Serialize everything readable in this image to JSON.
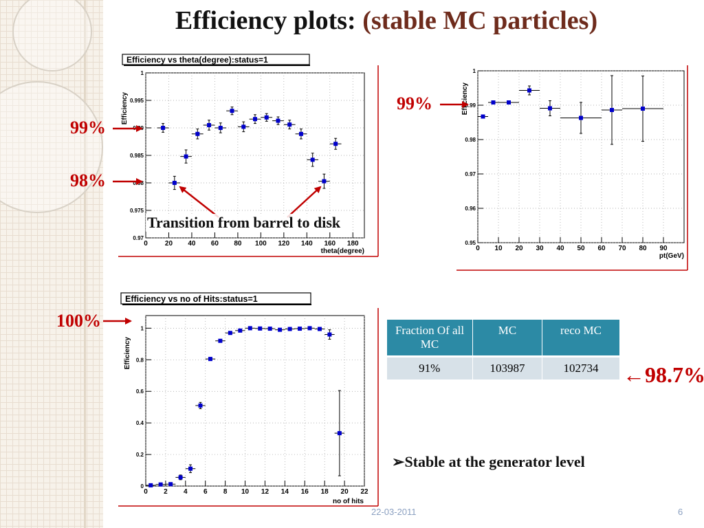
{
  "slide": {
    "title_main": "Efficiency plots:",
    "title_accent": "(stable MC particles)",
    "footer_date": "22-03-2011",
    "page_number": "6",
    "bullet_text": "Stable at the generator level",
    "transition_label": "Transition from barrel to disk"
  },
  "annotations": {
    "theta_99": "99%",
    "theta_98": "98%",
    "pt_99": "99%",
    "hits_100": "100%",
    "table_overall": "←98.7%"
  },
  "table": {
    "headers": [
      "Fraction Of all  MC",
      "MC",
      "reco MC"
    ],
    "row": [
      "91%",
      "103987",
      "102734"
    ]
  },
  "colors": {
    "marker": "#0000cc",
    "annotation_red": "#c00000",
    "frame_red": "#c00000",
    "title_accent": "#6e2b1c",
    "table_header": "#2c8aa5",
    "table_row": "#d7e1e8"
  },
  "chart_data": [
    {
      "type": "scatter",
      "title": "Efficiency vs theta(degree):status=1",
      "xlabel": "theta(degree)",
      "ylabel": "Efficiency",
      "xlim": [
        0,
        190
      ],
      "ylim": [
        0.97,
        1.0
      ],
      "xticks": [
        0,
        20,
        40,
        60,
        80,
        100,
        120,
        140,
        160,
        180
      ],
      "yticks": [
        0.97,
        0.975,
        0.98,
        0.985,
        0.99,
        0.995,
        1.0
      ],
      "ytick_labels": [
        "0.97",
        "0.975",
        "0.98",
        "0.985",
        "0.99",
        "0.995",
        "1"
      ],
      "x": [
        15,
        25,
        35,
        45,
        55,
        65,
        75,
        85,
        95,
        105,
        115,
        125,
        135,
        145,
        155,
        165
      ],
      "y": [
        0.99,
        0.98,
        0.9848,
        0.9889,
        0.9905,
        0.99,
        0.9931,
        0.9902,
        0.9916,
        0.9919,
        0.9913,
        0.9906,
        0.9889,
        0.9842,
        0.9803,
        0.9871
      ],
      "yerr": [
        0.0008,
        0.0012,
        0.0012,
        0.0009,
        0.0009,
        0.0009,
        0.0007,
        0.0009,
        0.0008,
        0.0007,
        0.0007,
        0.0008,
        0.0009,
        0.0012,
        0.0013,
        0.001
      ],
      "xerr": [
        5,
        5,
        5,
        5,
        5,
        5,
        5,
        5,
        5,
        5,
        5,
        5,
        5,
        5,
        5,
        5
      ]
    },
    {
      "type": "scatter",
      "title": "",
      "xlabel": "pt(GeV)",
      "ylabel": "Efficiency",
      "xlim": [
        0,
        100
      ],
      "ylim": [
        0.95,
        1.0
      ],
      "xticks": [
        0,
        10,
        20,
        30,
        40,
        50,
        60,
        70,
        80,
        90
      ],
      "yticks": [
        0.95,
        0.96,
        0.97,
        0.98,
        0.99,
        1.0
      ],
      "ytick_labels": [
        "0.95",
        "0.96",
        "0.97",
        "0.98",
        "0.99",
        "1"
      ],
      "x": [
        2.5,
        7.5,
        15,
        25,
        35,
        50,
        65,
        80
      ],
      "y": [
        0.9867,
        0.9908,
        0.9908,
        0.9943,
        0.9891,
        0.9863,
        0.9886,
        0.989
      ],
      "yerr": [
        0.0004,
        0.0004,
        0.0005,
        0.0013,
        0.0022,
        0.0045,
        0.01,
        0.0095
      ],
      "xerr": [
        2.5,
        2.5,
        5,
        5,
        5,
        10,
        5,
        10
      ]
    },
    {
      "type": "scatter",
      "title": "Efficiency vs no of Hits:status=1",
      "xlabel": "no of hits",
      "ylabel": "Efficiency",
      "xlim": [
        0,
        22
      ],
      "ylim": [
        0,
        1.08
      ],
      "xticks": [
        0,
        2,
        4,
        6,
        8,
        10,
        12,
        14,
        16,
        18,
        20,
        22
      ],
      "yticks": [
        0,
        0.2,
        0.4,
        0.6,
        0.8,
        1.0
      ],
      "ytick_labels": [
        "0",
        "0.2",
        "0.4",
        "0.6",
        "0.8",
        "1"
      ],
      "x": [
        0.5,
        1.5,
        2.5,
        3.5,
        4.5,
        5.5,
        6.5,
        7.5,
        8.5,
        9.5,
        10.5,
        11.5,
        12.5,
        13.5,
        14.5,
        15.5,
        16.5,
        17.5,
        18.5,
        19.5
      ],
      "y": [
        0.005,
        0.01,
        0.012,
        0.055,
        0.11,
        0.51,
        0.805,
        0.92,
        0.97,
        0.985,
        1.0,
        0.998,
        0.997,
        0.99,
        0.995,
        0.997,
        1.0,
        0.995,
        0.96,
        0.335
      ],
      "yerr": [
        0.005,
        0.005,
        0.005,
        0.015,
        0.025,
        0.02,
        0.01,
        0.008,
        0.008,
        0.008,
        0.005,
        0.005,
        0.005,
        0.005,
        0.005,
        0.005,
        0.005,
        0.01,
        0.03,
        0.27
      ],
      "xerr": [
        0.5,
        0.5,
        0.5,
        0.5,
        0.5,
        0.5,
        0.5,
        0.5,
        0.5,
        0.5,
        0.5,
        0.5,
        0.5,
        0.5,
        0.5,
        0.5,
        0.5,
        0.5,
        0.5,
        0.5
      ]
    }
  ]
}
